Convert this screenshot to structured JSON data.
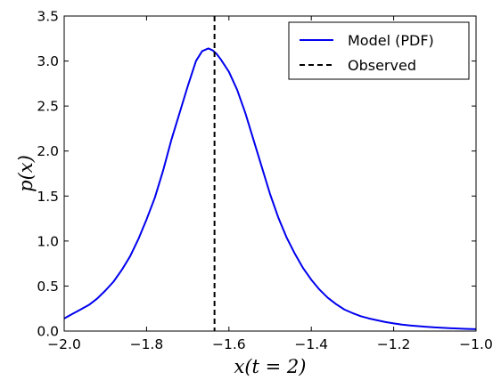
{
  "chart_data": {
    "type": "line",
    "xlabel": "x(t = 2)",
    "ylabel": "p(x)",
    "xlim": [
      -2.0,
      -1.0
    ],
    "ylim": [
      0.0,
      3.5
    ],
    "x_ticks": [
      -2.0,
      -1.8,
      -1.6,
      -1.4,
      -1.2,
      -1.0
    ],
    "x_tick_labels": [
      "−2.0",
      "−1.8",
      "−1.6",
      "−1.4",
      "−1.2",
      "−1.0"
    ],
    "y_ticks": [
      0.0,
      0.5,
      1.0,
      1.5,
      2.0,
      2.5,
      3.0,
      3.5
    ],
    "y_tick_labels": [
      "0.0",
      "0.5",
      "1.0",
      "1.5",
      "2.0",
      "2.5",
      "3.0",
      "3.5"
    ],
    "grid": false,
    "legend_position": "top-right",
    "series": [
      {
        "name": "Model (PDF)",
        "color": "#0000ee",
        "style": "solid",
        "x": [
          -2.0,
          -1.98,
          -1.96,
          -1.94,
          -1.92,
          -1.9,
          -1.88,
          -1.86,
          -1.84,
          -1.82,
          -1.8,
          -1.78,
          -1.76,
          -1.74,
          -1.72,
          -1.7,
          -1.68,
          -1.665,
          -1.65,
          -1.64,
          -1.63,
          -1.62,
          -1.6,
          -1.58,
          -1.56,
          -1.54,
          -1.52,
          -1.5,
          -1.48,
          -1.46,
          -1.44,
          -1.42,
          -1.4,
          -1.38,
          -1.36,
          -1.34,
          -1.32,
          -1.3,
          -1.28,
          -1.26,
          -1.24,
          -1.22,
          -1.2,
          -1.18,
          -1.16,
          -1.14,
          -1.12,
          -1.1,
          -1.08,
          -1.06,
          -1.04,
          -1.02,
          -1.0
        ],
        "y": [
          0.14,
          0.19,
          0.24,
          0.29,
          0.36,
          0.45,
          0.55,
          0.68,
          0.83,
          1.02,
          1.24,
          1.48,
          1.78,
          2.12,
          2.42,
          2.72,
          3.0,
          3.11,
          3.14,
          3.12,
          3.08,
          3.02,
          2.88,
          2.68,
          2.42,
          2.12,
          1.82,
          1.52,
          1.26,
          1.04,
          0.86,
          0.7,
          0.57,
          0.46,
          0.37,
          0.3,
          0.24,
          0.2,
          0.165,
          0.14,
          0.12,
          0.1,
          0.085,
          0.072,
          0.062,
          0.054,
          0.047,
          0.041,
          0.036,
          0.031,
          0.027,
          0.024,
          0.021
        ]
      },
      {
        "name": "Observed",
        "color": "#000000",
        "style": "dashed",
        "x_value": -1.635
      }
    ]
  }
}
